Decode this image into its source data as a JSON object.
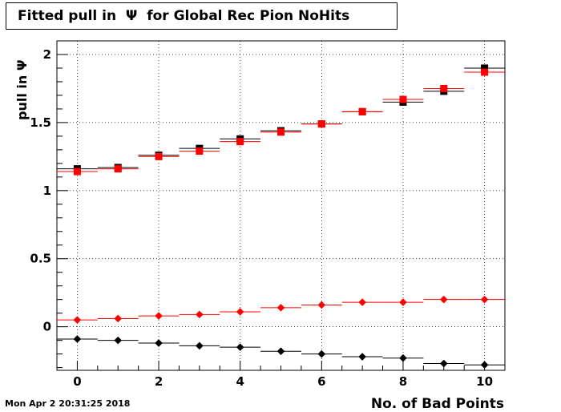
{
  "title": "Fitted pull in  Ψ  for Global Rec Pion NoHits",
  "timestamp": "Mon Apr  2 20:31:25 2018",
  "chart_data": {
    "type": "scatter",
    "title": "Fitted pull in  Ψ  for Global Rec Pion NoHits",
    "xlabel": "No. of Bad Points",
    "ylabel": "pull in  Ψ",
    "xlim": [
      -0.5,
      10.5
    ],
    "ylim": [
      -0.32,
      2.1
    ],
    "x_ticks": [
      0,
      2,
      4,
      6,
      8,
      10
    ],
    "y_ticks": [
      0,
      0.5,
      1,
      1.5,
      2
    ],
    "y_tick_labels": [
      "0",
      "0.5",
      "1",
      "1.5",
      "2"
    ],
    "grid": true,
    "x": [
      0,
      1,
      2,
      3,
      4,
      5,
      6,
      7,
      8,
      9,
      10
    ],
    "series": [
      {
        "marker": "square",
        "color": "#000000",
        "values": [
          1.16,
          1.17,
          1.26,
          1.31,
          1.38,
          1.44,
          1.49,
          1.58,
          1.65,
          1.73,
          1.9
        ]
      },
      {
        "marker": "square",
        "color": "#ff0000",
        "values": [
          1.14,
          1.16,
          1.25,
          1.29,
          1.36,
          1.43,
          1.49,
          1.58,
          1.67,
          1.75,
          1.87
        ]
      },
      {
        "marker": "diamond",
        "color": "#ff0000",
        "values": [
          0.05,
          0.06,
          0.08,
          0.09,
          0.11,
          0.14,
          0.16,
          0.18,
          0.18,
          0.2,
          0.2
        ]
      },
      {
        "marker": "diamond",
        "color": "#000000",
        "values": [
          -0.09,
          -0.1,
          -0.12,
          -0.14,
          -0.15,
          -0.18,
          -0.2,
          -0.22,
          -0.23,
          -0.27,
          -0.28
        ]
      }
    ]
  }
}
